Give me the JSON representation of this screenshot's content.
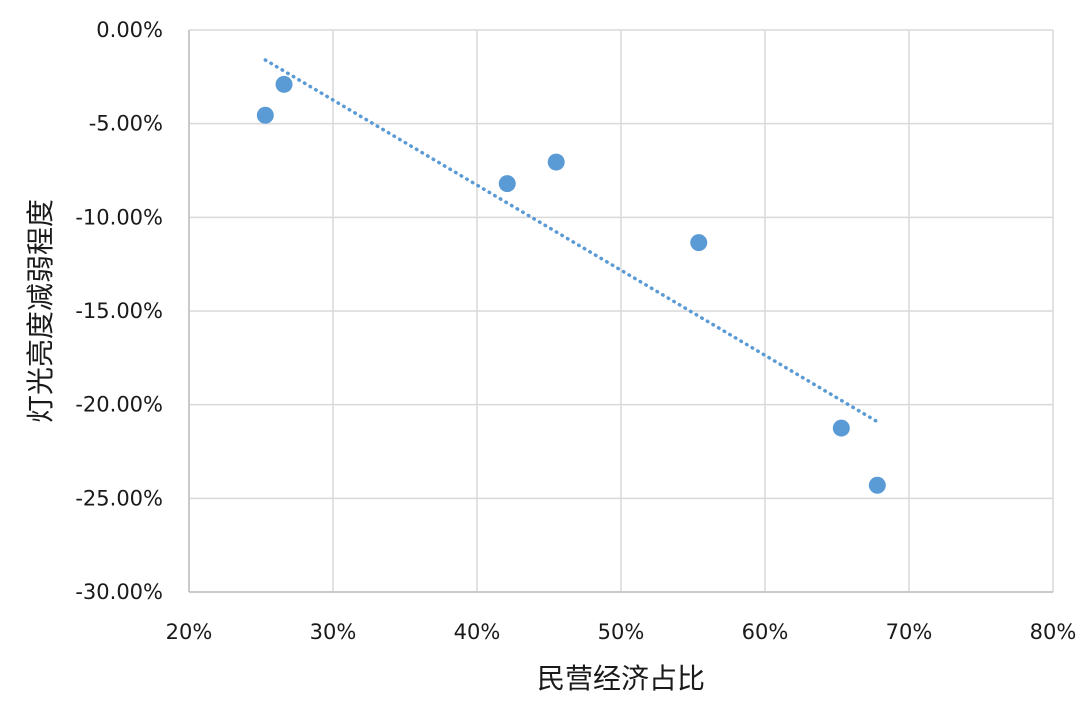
{
  "chart_data": {
    "type": "scatter",
    "title": "",
    "xlabel": "民营经济占比",
    "ylabel": "灯光亮度减弱程度",
    "xlim": [
      0.2,
      0.8
    ],
    "ylim": [
      -0.3,
      0.0
    ],
    "x_tick_values": [
      0.2,
      0.3,
      0.4,
      0.5,
      0.6,
      0.7,
      0.8
    ],
    "x_tick_labels": [
      "20%",
      "30%",
      "40%",
      "50%",
      "60%",
      "70%",
      "80%"
    ],
    "y_tick_values": [
      0.0,
      -0.05,
      -0.1,
      -0.15,
      -0.2,
      -0.25,
      -0.3
    ],
    "y_tick_labels": [
      "0.00%",
      "-5.00%",
      "-10.00%",
      "-15.00%",
      "-20.00%",
      "-25.00%",
      "-30.00%"
    ],
    "grid": true,
    "legend": "none",
    "series": [
      {
        "color": "#5b9bd5",
        "points": [
          {
            "x": 0.253,
            "y": -0.0455
          },
          {
            "x": 0.266,
            "y": -0.029
          },
          {
            "x": 0.421,
            "y": -0.082
          },
          {
            "x": 0.455,
            "y": -0.0705
          },
          {
            "x": 0.554,
            "y": -0.1135
          },
          {
            "x": 0.653,
            "y": -0.2125
          },
          {
            "x": 0.678,
            "y": -0.243
          }
        ]
      }
    ],
    "trendline": {
      "style": "dotted",
      "color": "#5b9bd5",
      "points": [
        {
          "x": 0.253,
          "y": -0.016
        },
        {
          "x": 0.68,
          "y": -0.21
        }
      ]
    },
    "colors": {
      "grid": "#d9d9d9",
      "axis": "#bfbfbf",
      "text": "#1a1a1a"
    }
  }
}
